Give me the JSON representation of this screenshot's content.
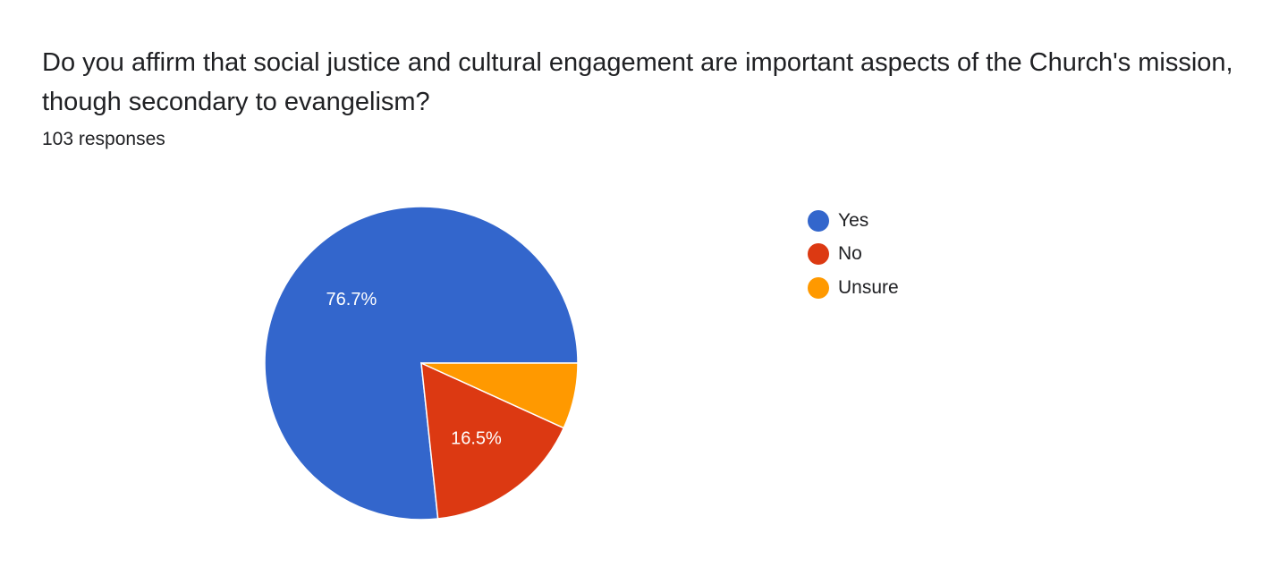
{
  "question": {
    "title": "Do you affirm that social justice and cultural engagement are important aspects of the Church's mission, though secondary to evangelism?",
    "responses_label": "103 responses"
  },
  "chart_data": {
    "type": "pie",
    "legend_position": "right",
    "slices": [
      {
        "label": "Yes",
        "value": 76.7,
        "color": "#3366cc",
        "data_label": "76.7%"
      },
      {
        "label": "No",
        "value": 16.5,
        "color": "#dc3912",
        "data_label": "16.5%"
      },
      {
        "label": "Unsure",
        "value": 6.8,
        "color": "#ff9900",
        "data_label": ""
      }
    ]
  }
}
